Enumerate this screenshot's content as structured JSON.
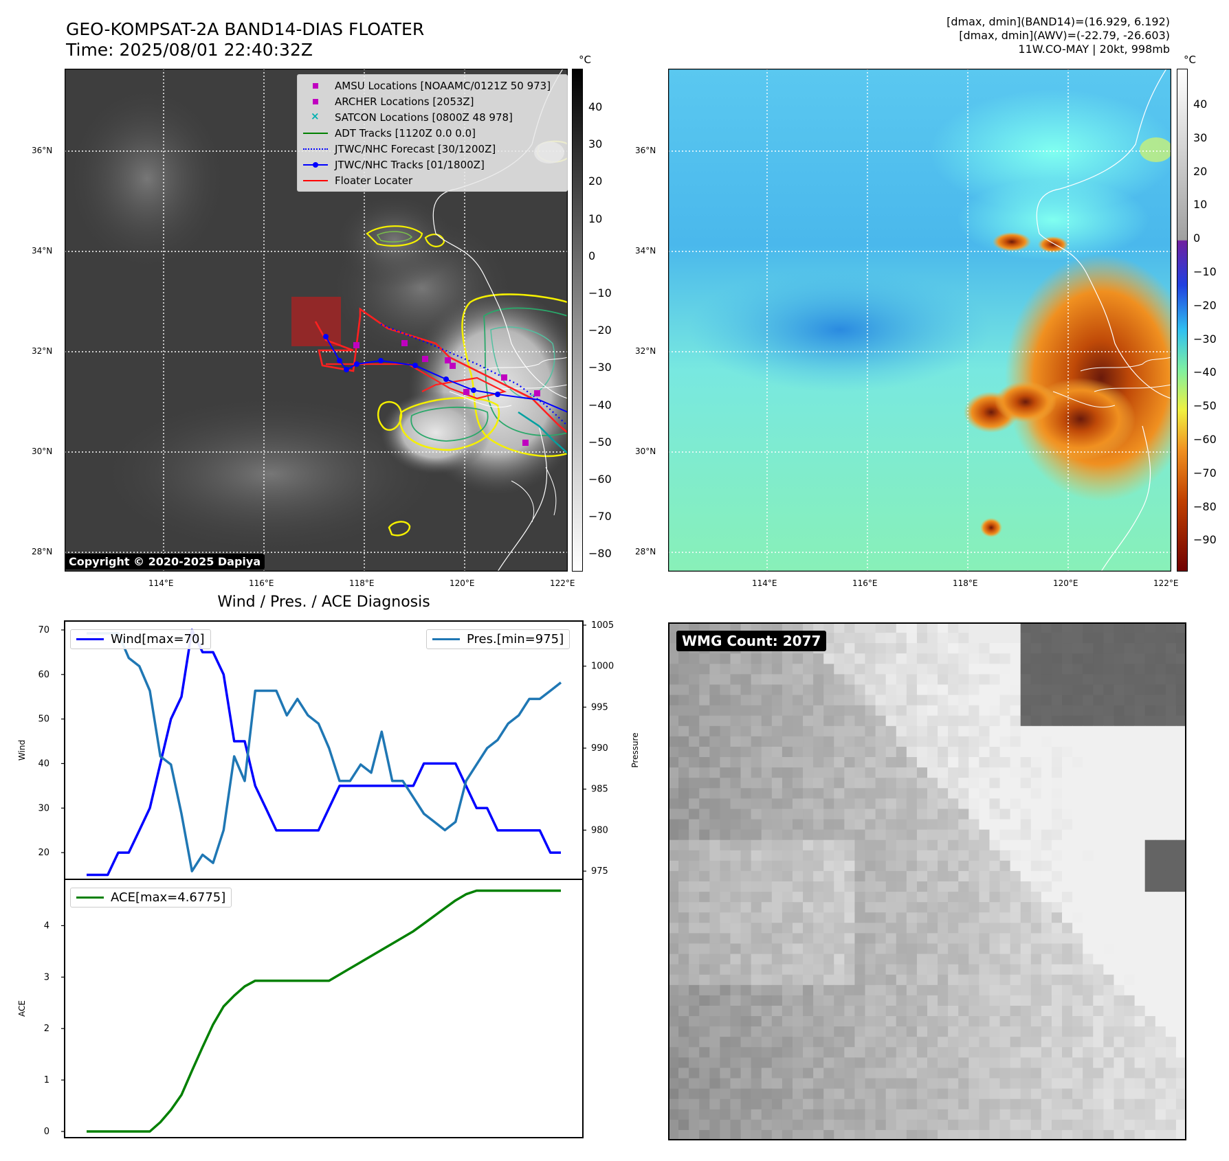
{
  "header": {
    "title_line1": "GEO-KOMPSAT-2A BAND14-DIAS FLOATER",
    "title_line2": "Time: 2025/08/01 22:40:32Z",
    "info_line1": "[dmax, dmin](BAND14)=(16.929, 6.192)",
    "info_line2": "[dmax, dmin](AWV)=(-22.79, -26.603)",
    "info_line3": "11W.CO-MAY | 20kt, 998mb"
  },
  "map": {
    "lat_labels": [
      "36°N",
      "34°N",
      "32°N",
      "30°N",
      "28°N"
    ],
    "lon_labels": [
      "114°E",
      "116°E",
      "118°E",
      "120°E",
      "122°E"
    ],
    "unit": "°C",
    "copyright": "Copyright © 2020-2025 Dapiya",
    "left_colorbar_ticks": [
      "40",
      "30",
      "20",
      "10",
      "0",
      "−10",
      "−20",
      "−30",
      "−40",
      "−50",
      "−60",
      "−70",
      "−80"
    ],
    "right_colorbar_ticks": [
      "40",
      "30",
      "20",
      "10",
      "0",
      "−10",
      "−20",
      "−30",
      "−40",
      "−50",
      "−60",
      "−70",
      "−80",
      "−90"
    ],
    "legend": [
      {
        "label": "AMSU Locations [NOAAMC/0121Z 50 973]",
        "key": "square",
        "color": "#c000c0"
      },
      {
        "label": "ARCHER Locations [2053Z]",
        "key": "square",
        "color": "#c000c0"
      },
      {
        "label": "SATCON Locations [0800Z 48 978]",
        "key": "x",
        "color": "#00b0b0"
      },
      {
        "label": "ADT Tracks [1120Z 0.0 0.0]",
        "key": "line",
        "color": "#008000"
      },
      {
        "label": "JTWC/NHC Forecast [30/1200Z]",
        "key": "dotted",
        "color": "#0000ff"
      },
      {
        "label": "JTWC/NHC Tracks [01/1800Z]",
        "key": "line-dot",
        "color": "#0000ff"
      },
      {
        "label": "Floater Locater",
        "key": "line",
        "color": "#ff0000"
      }
    ]
  },
  "diagnosis": {
    "title": "Wind / Pres. / ACE Diagnosis",
    "wmg_label": "WMG Count: 2077"
  },
  "chart_data": [
    {
      "type": "line",
      "title": "Wind / Pres. / ACE Diagnosis",
      "ylabel": "Wind",
      "y2label": "Pressure",
      "ylim": [
        14,
        72
      ],
      "y2lim": [
        974,
        1005.5
      ],
      "yticks": [
        20,
        30,
        40,
        50,
        60,
        70
      ],
      "y2ticks": [
        975,
        980,
        985,
        990,
        995,
        1000,
        1005
      ],
      "series": [
        {
          "name": "Wind[max=70]",
          "color": "#0000ff",
          "axis": "left",
          "values": [
            15,
            15,
            15,
            20,
            20,
            25,
            30,
            40,
            50,
            55,
            70,
            65,
            65,
            60,
            45,
            45,
            35,
            30,
            25,
            25,
            25,
            25,
            25,
            30,
            35,
            35,
            35,
            35,
            35,
            35,
            35,
            35,
            40,
            40,
            40,
            40,
            35,
            30,
            30,
            25,
            25,
            25,
            25,
            25,
            20,
            20
          ]
        },
        {
          "name": "Pres.[min=975]",
          "color": "#1f77b4",
          "axis": "right",
          "values": [
            1004,
            1004,
            1004,
            1004,
            1001,
            1000,
            997,
            989,
            988,
            982,
            975,
            977,
            976,
            980,
            989,
            986,
            997,
            997,
            997,
            994,
            996,
            994,
            993,
            990,
            986,
            986,
            988,
            987,
            992,
            986,
            986,
            984,
            982,
            981,
            980,
            981,
            986,
            988,
            990,
            991,
            993,
            994,
            996,
            996,
            997,
            998
          ]
        }
      ]
    },
    {
      "type": "line",
      "ylabel": "ACE",
      "ylim": [
        -0.12,
        4.9
      ],
      "yticks": [
        0,
        1,
        2,
        3,
        4
      ],
      "series": [
        {
          "name": "ACE[max=4.6775]",
          "color": "#008000",
          "values": [
            0,
            0,
            0,
            0,
            0,
            0,
            0,
            0.18,
            0.42,
            0.71,
            1.18,
            1.64,
            2.08,
            2.43,
            2.64,
            2.82,
            2.93,
            2.93,
            2.93,
            2.93,
            2.93,
            2.93,
            2.93,
            2.93,
            3.05,
            3.17,
            3.29,
            3.41,
            3.53,
            3.65,
            3.77,
            3.89,
            4.04,
            4.19,
            4.34,
            4.49,
            4.61,
            4.68,
            4.68,
            4.68,
            4.68,
            4.68,
            4.68,
            4.68,
            4.68,
            4.68
          ]
        }
      ]
    }
  ]
}
